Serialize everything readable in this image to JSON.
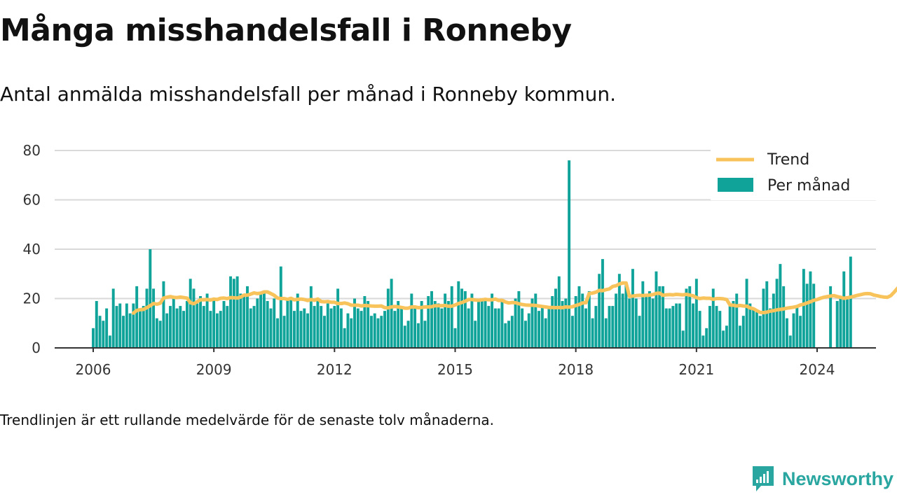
{
  "header": {
    "title": "Många misshandelsfall i Ronneby",
    "subtitle": "Antal anmälda misshandelsfall per månad i Ronneby kommun."
  },
  "footnote": "Trendlinjen är ett rullande medelvärde för de senaste tolv månaderna.",
  "brand": {
    "name": "Newsworthy",
    "color": "#2aa6a0",
    "icon": "newsworthy-logo-icon"
  },
  "colors": {
    "bar": "#0fa39a",
    "trend": "#f7c35a",
    "grid": "#d9d9d9",
    "axis": "#333333"
  },
  "chart_data": {
    "type": "bar",
    "title": "",
    "xlabel": "",
    "ylabel": "",
    "ylim": [
      0,
      80
    ],
    "yticks": [
      0,
      20,
      40,
      60,
      80
    ],
    "xticks": [
      "2006",
      "2009",
      "2012",
      "2015",
      "2018",
      "2021",
      "2024"
    ],
    "grid": true,
    "legend_position": "top-right",
    "x_start": "2006-01",
    "x_end": "2024-07",
    "series": [
      {
        "name": "Per månad",
        "type": "bar",
        "values": [
          8,
          19,
          13,
          11,
          16,
          5,
          24,
          17,
          18,
          13,
          18,
          14,
          18,
          25,
          16,
          17,
          24,
          40,
          24,
          12,
          11,
          27,
          14,
          17,
          21,
          16,
          17,
          15,
          19,
          28,
          24,
          18,
          21,
          17,
          22,
          15,
          20,
          14,
          15,
          19,
          17,
          29,
          28,
          29,
          22,
          21,
          25,
          16,
          17,
          20,
          22,
          23,
          19,
          16,
          20,
          12,
          33,
          13,
          20,
          20,
          15,
          22,
          15,
          16,
          14,
          25,
          17,
          19,
          17,
          13,
          18,
          16,
          17,
          24,
          16,
          8,
          14,
          12,
          20,
          16,
          15,
          21,
          19,
          13,
          14,
          12,
          13,
          15,
          24,
          28,
          15,
          19,
          17,
          9,
          11,
          22,
          17,
          10,
          19,
          11,
          21,
          23,
          19,
          18,
          16,
          22,
          19,
          25,
          8,
          27,
          24,
          23,
          16,
          22,
          11,
          19,
          20,
          19,
          17,
          22,
          16,
          16,
          19,
          10,
          11,
          13,
          20,
          23,
          16,
          11,
          14,
          20,
          22,
          15,
          17,
          12,
          16,
          21,
          24,
          29,
          19,
          20,
          76,
          13,
          21,
          25,
          22,
          16,
          23,
          12,
          17,
          30,
          36,
          12,
          17,
          17,
          22,
          30,
          22,
          26,
          20,
          32,
          20,
          13,
          27,
          21,
          23,
          20,
          31,
          25,
          25,
          16,
          16,
          17,
          18,
          18,
          7,
          24,
          25,
          18,
          28,
          15,
          5,
          8,
          17,
          24,
          17,
          15,
          7,
          9,
          17,
          19,
          22,
          9,
          13,
          28,
          18,
          16,
          15,
          13,
          24,
          27,
          16,
          22,
          28,
          34,
          25,
          12,
          5,
          14,
          17,
          13,
          32,
          26,
          31,
          26,
          0,
          0,
          0,
          0,
          25,
          0,
          19,
          21,
          31,
          20,
          37
        ]
      },
      {
        "name": "Trend",
        "type": "line",
        "start_index": 12,
        "values": [
          14.1,
          15.2,
          15.5,
          15.6,
          16.3,
          17.1,
          18,
          17.7,
          18.1,
          20.2,
          20.5,
          20.8,
          20.5,
          20.4,
          20.6,
          20.4,
          20.2,
          18.3,
          17.9,
          18.7,
          19.5,
          19.5,
          19.6,
          19.4,
          19.8,
          19.6,
          20.1,
          20.2,
          20,
          20.4,
          20.3,
          20.2,
          20.6,
          21.4,
          21.4,
          21.8,
          22.3,
          22,
          22.2,
          22.7,
          22.7,
          22,
          21.3,
          20.2,
          20,
          20,
          19.7,
          20.1,
          19.5,
          19.7,
          19.8,
          19.6,
          19.2,
          19.6,
          19.3,
          19.8,
          18.8,
          18.7,
          18.8,
          18.5,
          18.5,
          18,
          18,
          18.2,
          17.9,
          17.3,
          17.3,
          17.3,
          17,
          17.2,
          17.1,
          17,
          16.9,
          16.9,
          17,
          16.3,
          16.2,
          16.6,
          16.8,
          16.6,
          16.4,
          16.1,
          16.1,
          16.6,
          16.6,
          16.3,
          16.4,
          16.6,
          16.6,
          16.7,
          17.1,
          17.1,
          17.1,
          17.2,
          16.9,
          16.9,
          17.4,
          18,
          18.4,
          18.9,
          19.6,
          19.6,
          19.4,
          19.3,
          19.5,
          19.7,
          19.5,
          19.5,
          19.8,
          19.2,
          19.3,
          18.6,
          18.2,
          18.4,
          18.3,
          17.9,
          17.6,
          17.4,
          17.3,
          17.3,
          17.2,
          17,
          16.8,
          16.6,
          16.4,
          16.4,
          16.3,
          16.4,
          16.3,
          16.6,
          16.5,
          16.7,
          17.2,
          17.6,
          18.2,
          18.3,
          22.1,
          22.2,
          22.6,
          23.3,
          23.2,
          23.6,
          23.9,
          24.9,
          25.2,
          25.9,
          26.3,
          26.3,
          20.9,
          21,
          21.2,
          21.3,
          21.2,
          21.3,
          21.4,
          21.6,
          22.1,
          22.2,
          21.3,
          21.5,
          21.6,
          21.5,
          21.7,
          21.6,
          21.5,
          21.7,
          21.4,
          21.1,
          20.4,
          20,
          20.2,
          20.1,
          20.1,
          19.7,
          20,
          20,
          19.9,
          19.6,
          17.4,
          17.3,
          17,
          17.2,
          17,
          16.9,
          16.2,
          15.9,
          15.1,
          14.4,
          14.3,
          14.5,
          14.9,
          15.1,
          15.4,
          15.6,
          15.8,
          16.1,
          16.3,
          16.5,
          16.8,
          17.4,
          17.7,
          18.2,
          18.7,
          19.3,
          19.6,
          20.1,
          20.5,
          20.8,
          21,
          21.2,
          20.8,
          20.5,
          20.1,
          20.3,
          20.6,
          20.9,
          21.3,
          21.6,
          21.9,
          22,
          21.9,
          21.4,
          21.1,
          20.8,
          20.6,
          20.5,
          21.2,
          22.6,
          24.2,
          25.2
        ]
      }
    ]
  }
}
